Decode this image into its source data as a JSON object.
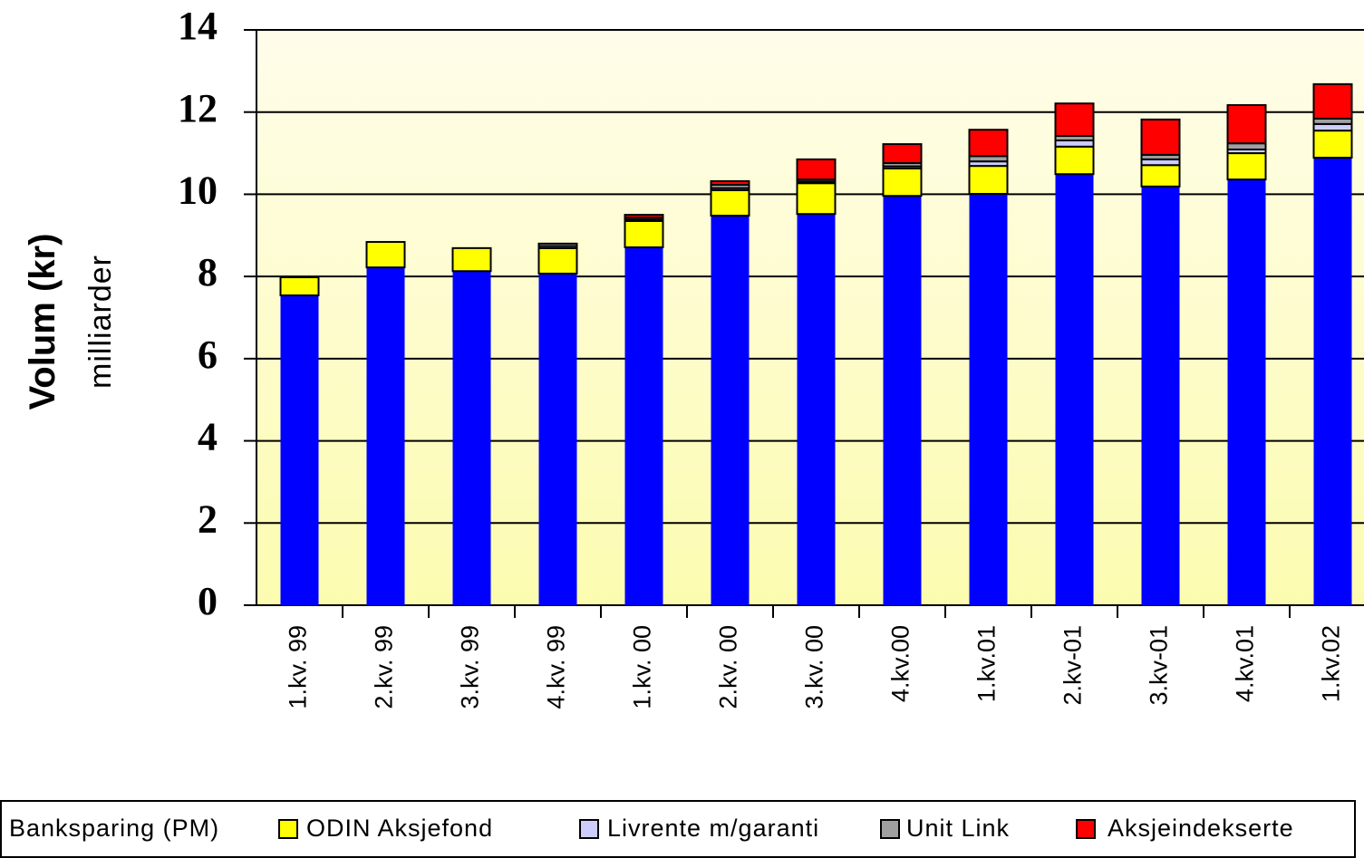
{
  "chart_data": {
    "type": "stacked-bar",
    "y_label": "Volum (kr)",
    "y_label_unit": "milliarder",
    "categories": [
      "1.kv. 99",
      "2.kv. 99",
      "3.kv. 99",
      "4.kv. 99",
      "1.kv. 00",
      "2.kv. 00",
      "3.kv. 00",
      "4.kv.00",
      "1.kv.01",
      "2.kv-01",
      "3.kv-01",
      "4.kv.01",
      "1.kv.02"
    ],
    "series": [
      {
        "name": "Banksparing (PM)",
        "color": "#0000ff",
        "values": [
          7.54,
          8.22,
          8.13,
          8.07,
          8.71,
          9.48,
          9.52,
          9.96,
          10.01,
          10.49,
          10.19,
          10.36,
          10.89
        ]
      },
      {
        "name": "ODIN Aksjefond",
        "color": "#ffff00",
        "values": [
          0.44,
          0.62,
          0.56,
          0.62,
          0.64,
          0.62,
          0.75,
          0.67,
          0.68,
          0.67,
          0.52,
          0.64,
          0.66
        ]
      },
      {
        "name": "Livrente m/garanti",
        "color": "#ccccff",
        "values": [
          0,
          0,
          0,
          0.05,
          0.03,
          0.05,
          0.04,
          0.05,
          0.11,
          0.15,
          0.14,
          0.09,
          0.16
        ]
      },
      {
        "name": "Unit Link",
        "color": "#a0a0a0",
        "values": [
          0,
          0,
          0,
          0.06,
          0.05,
          0.08,
          0.05,
          0.08,
          0.13,
          0.11,
          0.11,
          0.15,
          0.13
        ]
      },
      {
        "name": "Aksjeindekserte",
        "color": "#ff0000",
        "values": [
          0,
          0,
          0,
          0,
          0.07,
          0.09,
          0.49,
          0.46,
          0.64,
          0.79,
          0.86,
          0.93,
          0.84
        ]
      }
    ],
    "ylim": [
      0,
      14
    ],
    "yticks": [
      0,
      2,
      4,
      6,
      8,
      10,
      12,
      14
    ],
    "grid": true
  }
}
